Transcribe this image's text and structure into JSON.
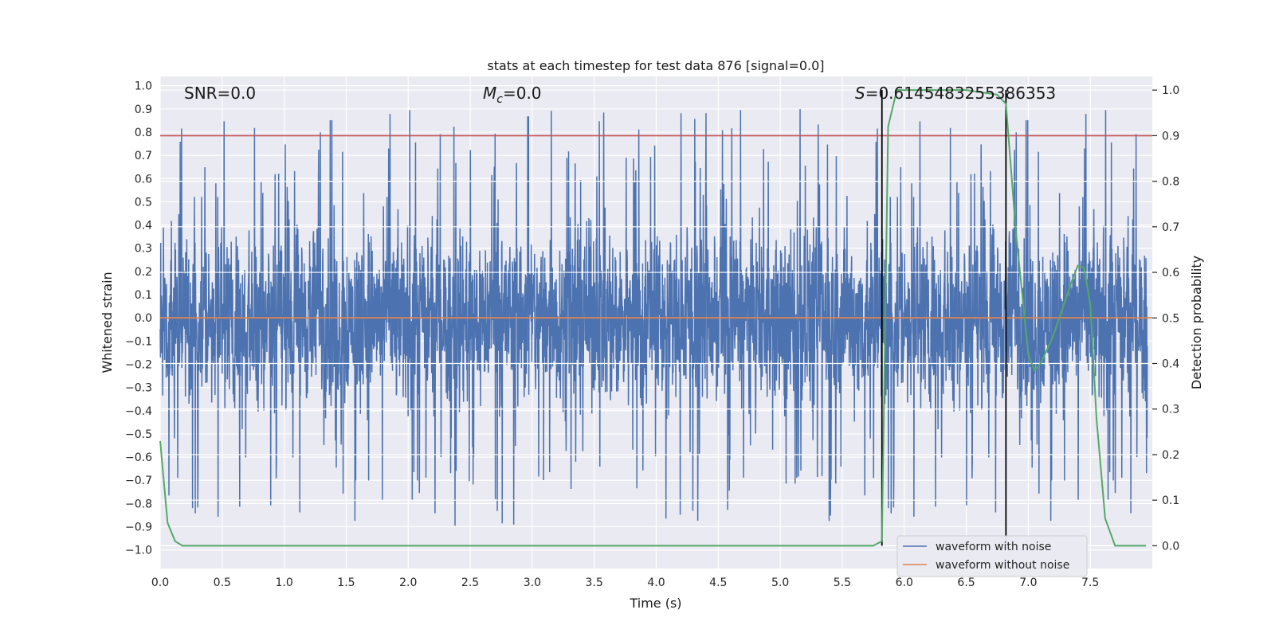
{
  "chart_data": {
    "type": "line",
    "title": "stats at each timestep for test data 876 [signal=0.0]",
    "xlabel": "Time (s)",
    "ylabel_left": "Whitened strain",
    "ylabel_right": "Detection probability",
    "xlim": [
      0.0,
      8.0
    ],
    "ylim_left": [
      -1.08,
      1.04
    ],
    "ylim_right": [
      -0.05,
      1.03
    ],
    "x_ticks": [
      0.0,
      0.5,
      1.0,
      1.5,
      2.0,
      2.5,
      3.0,
      3.5,
      4.0,
      4.5,
      5.0,
      5.5,
      6.0,
      6.5,
      7.0,
      7.5
    ],
    "x_tick_labels": [
      "0.0",
      "0.5",
      "1.0",
      "1.5",
      "2.0",
      "2.5",
      "3.0",
      "3.5",
      "4.0",
      "4.5",
      "5.0",
      "5.5",
      "6.0",
      "6.5",
      "7.0",
      "7.5"
    ],
    "y_left_ticks": [
      1.0,
      0.9,
      0.8,
      0.7,
      0.6,
      0.5,
      0.4,
      0.3,
      0.2,
      0.1,
      0.0,
      -0.1,
      -0.2,
      -0.3,
      -0.4,
      -0.5,
      -0.6,
      -0.7,
      -0.8,
      -0.9,
      -1.0
    ],
    "y_left_tick_labels": [
      "1.0",
      "0.9",
      "0.8",
      "0.7",
      "0.6",
      "0.5",
      "0.4",
      "0.3",
      "0.2",
      "0.1",
      "0.0",
      "−0.1",
      "−0.2",
      "−0.3",
      "−0.4",
      "−0.5",
      "−0.6",
      "−0.7",
      "−0.8",
      "−0.9",
      "−1.0"
    ],
    "y_right_ticks": [
      0.0,
      0.1,
      0.2,
      0.3,
      0.4,
      0.5,
      0.6,
      0.7,
      0.8,
      0.9,
      1.0
    ],
    "y_right_tick_labels": [
      "0.0",
      "0.1",
      "0.2",
      "0.3",
      "0.4",
      "0.5",
      "0.6",
      "0.7",
      "0.8",
      "0.9",
      "1.0"
    ],
    "annotations": {
      "snr": "SNR=0.0",
      "mc_symbol": "M",
      "mc_sub": "c",
      "mc_value": "=0.0",
      "s_symbol": "S",
      "s_value": "=0.6145483255386353"
    },
    "threshold_line": {
      "axis": "right",
      "value": 0.9,
      "color": "#c44e52"
    },
    "vertical_lines": [
      5.82,
      6.82
    ],
    "series": [
      {
        "name": "waveform with noise",
        "axis": "left",
        "color": "#4c72b0",
        "description_values": "random noise approx. amplitude ±0.45 with spikes to ±0.9"
      },
      {
        "name": "waveform without noise",
        "axis": "left",
        "color": "#dd8452",
        "x": [
          0.0,
          8.0
        ],
        "y": [
          0.0,
          0.0
        ]
      },
      {
        "name": "detection probability",
        "axis": "right",
        "color": "#55a868",
        "x": [
          0.0,
          0.06,
          0.12,
          0.18,
          0.25,
          0.5,
          1.0,
          2.0,
          3.0,
          4.0,
          5.0,
          5.75,
          5.82,
          5.87,
          5.94,
          6.0,
          6.5,
          6.75,
          6.82,
          6.9,
          7.0,
          7.05,
          7.1,
          7.2,
          7.3,
          7.35,
          7.4,
          7.45,
          7.5,
          7.55,
          7.62,
          7.7,
          7.8,
          7.95
        ],
        "y": [
          0.23,
          0.05,
          0.01,
          0.0,
          0.0,
          0.0,
          0.0,
          0.0,
          0.0,
          0.0,
          0.0,
          0.0,
          0.01,
          0.92,
          1.0,
          1.0,
          1.0,
          0.99,
          0.97,
          0.69,
          0.42,
          0.385,
          0.4,
          0.46,
          0.54,
          0.58,
          0.615,
          0.61,
          0.53,
          0.28,
          0.06,
          0.0,
          0.0,
          0.0
        ]
      }
    ],
    "legend": {
      "position": "lower-right",
      "entries": [
        {
          "label": "waveform with noise",
          "color": "#4c72b0"
        },
        {
          "label": "waveform without noise",
          "color": "#dd8452"
        }
      ]
    },
    "background_color": "#eaeaf2",
    "grid": true
  }
}
